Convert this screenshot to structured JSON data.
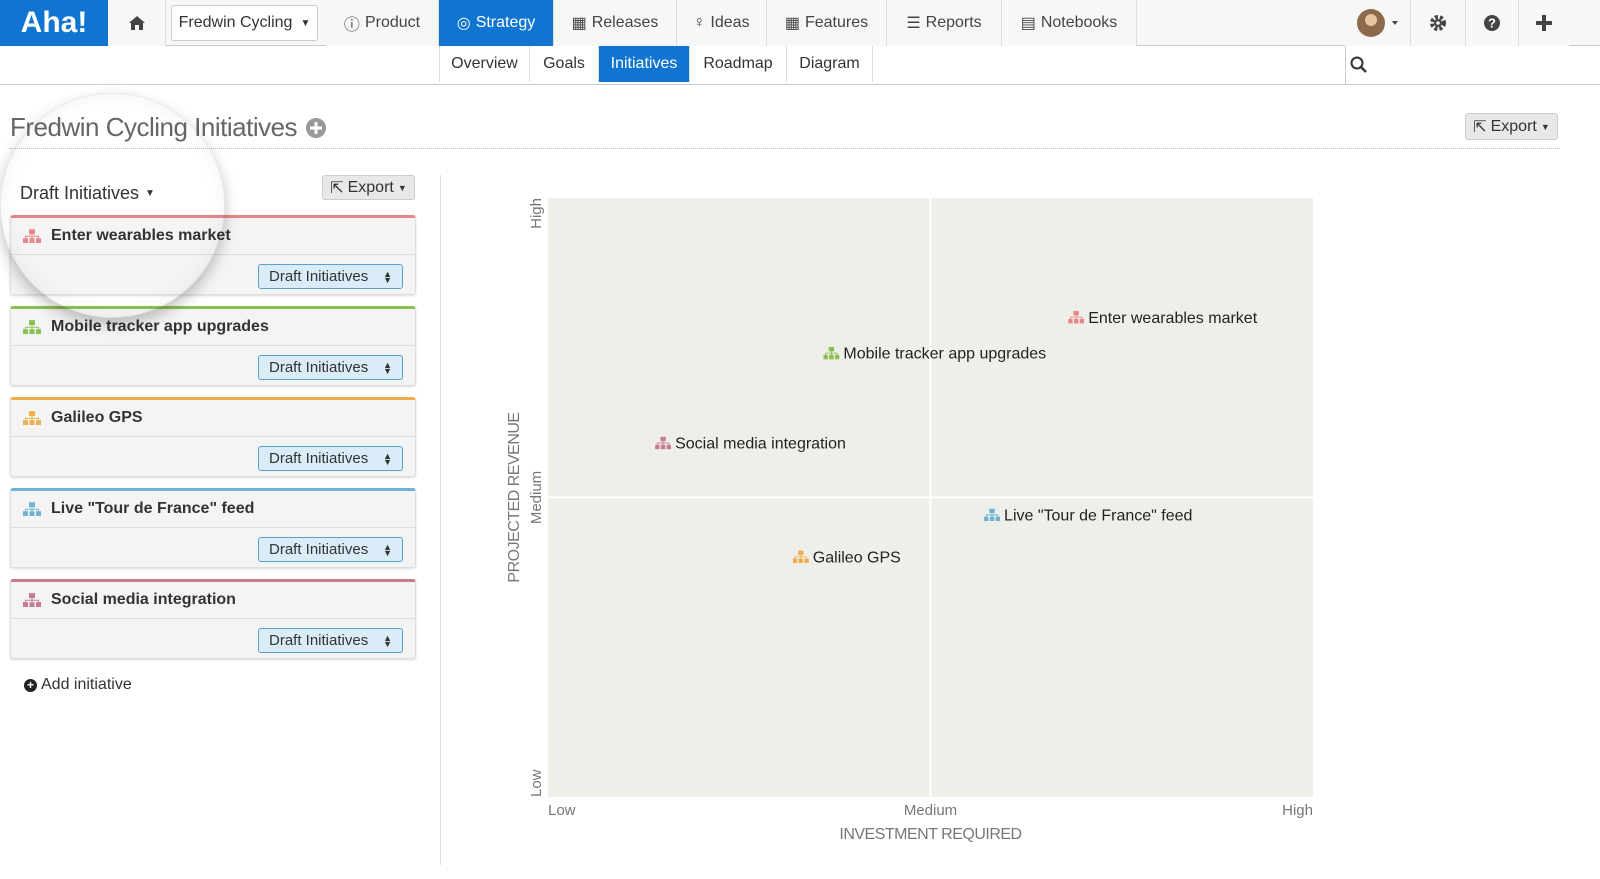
{
  "nav": {
    "logo": "Aha!",
    "product_selector": "Fredwin Cycling",
    "items": [
      "Product",
      "Strategy",
      "Releases",
      "Ideas",
      "Features",
      "Reports",
      "Notebooks"
    ],
    "active": "Strategy"
  },
  "subnav": {
    "items": [
      "Overview",
      "Goals",
      "Initiatives",
      "Roadmap",
      "Diagram"
    ],
    "active": "Initiatives"
  },
  "page": {
    "title": "Fredwin Cycling Initiatives",
    "export": "Export"
  },
  "list": {
    "filter": "Draft Initiatives",
    "export": "Export",
    "add": "Add initiative",
    "initiatives": [
      {
        "name": "Enter wearables market",
        "color": "#e8868a",
        "status": "Draft Initiatives"
      },
      {
        "name": "Mobile tracker app upgrades",
        "color": "#8cc152",
        "status": "Draft Initiatives"
      },
      {
        "name": "Galileo GPS",
        "color": "#f0ad4e",
        "status": "Draft Initiatives"
      },
      {
        "name": "Live \"Tour de France\" feed",
        "color": "#6fb3d2",
        "status": "Draft Initiatives"
      },
      {
        "name": "Social media integration",
        "color": "#c97b8e",
        "status": "Draft Initiatives"
      }
    ]
  },
  "chart_data": {
    "type": "scatter",
    "xlabel": "INVESTMENT REQUIRED",
    "ylabel": "PROJECTED REVENUE",
    "xlim": [
      0,
      100
    ],
    "ylim": [
      0,
      100
    ],
    "xticks": [
      {
        "value": 0,
        "label": "Low"
      },
      {
        "value": 50,
        "label": "Medium"
      },
      {
        "value": 100,
        "label": "High"
      }
    ],
    "yticks": [
      {
        "value": 0,
        "label": "Low"
      },
      {
        "value": 50,
        "label": "Medium"
      },
      {
        "value": 100,
        "label": "High"
      }
    ],
    "grid": true,
    "points": [
      {
        "name": "Enter wearables market",
        "color": "#e8868a",
        "x": 68,
        "y": 80
      },
      {
        "name": "Mobile tracker app upgrades",
        "color": "#8cc152",
        "x": 36,
        "y": 74
      },
      {
        "name": "Social media integration",
        "color": "#c97b8e",
        "x": 14,
        "y": 59
      },
      {
        "name": "Live \"Tour de France\" feed",
        "color": "#6fb3d2",
        "x": 57,
        "y": 47
      },
      {
        "name": "Galileo GPS",
        "color": "#f0ad4e",
        "x": 32,
        "y": 40
      }
    ]
  }
}
